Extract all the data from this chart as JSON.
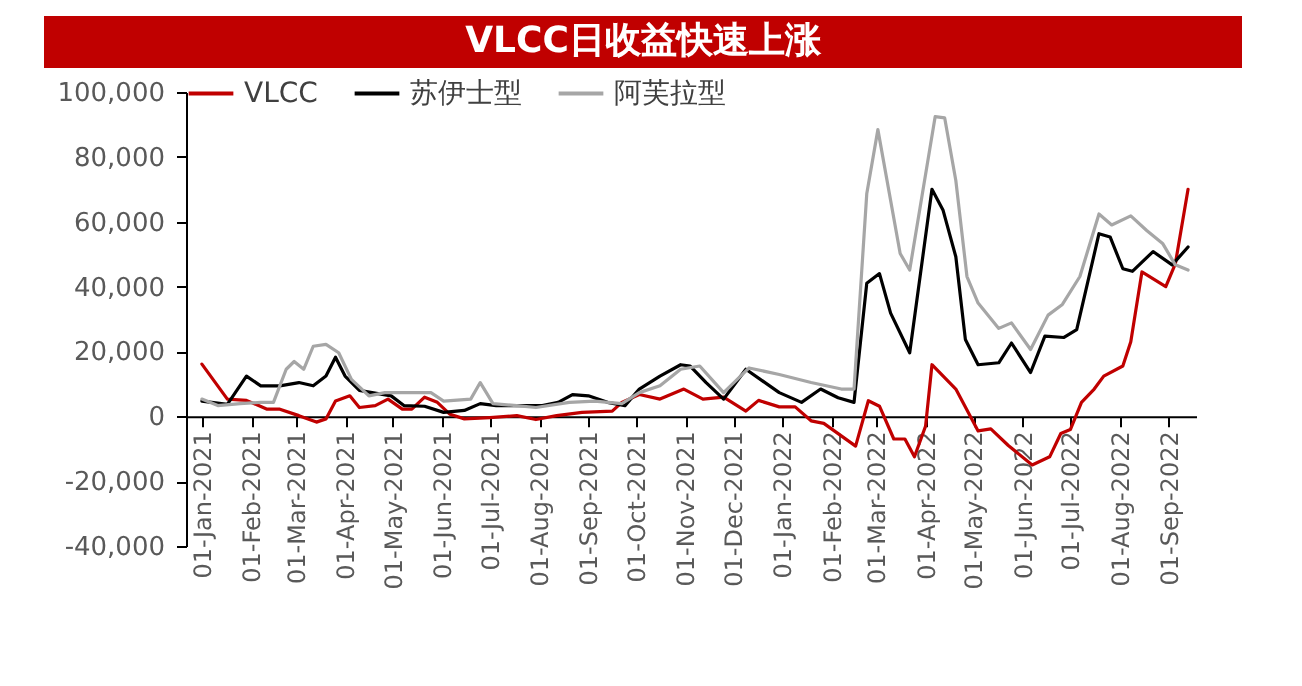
{
  "chart_data": {
    "type": "line",
    "title": "VLCC日收益快速上涨",
    "xlim": [
      "2020-12-22",
      "2022-09-18"
    ],
    "xticks": [
      {
        "value": "2021-01-01",
        "label": "01-Jan-2021"
      },
      {
        "value": "2021-02-01",
        "label": "01-Feb-2021"
      },
      {
        "value": "2021-03-01",
        "label": "01-Mar-2021"
      },
      {
        "value": "2021-04-01",
        "label": "01-Apr-2021"
      },
      {
        "value": "2021-05-01",
        "label": "01-May-2021"
      },
      {
        "value": "2021-06-01",
        "label": "01-Jun-2021"
      },
      {
        "value": "2021-07-01",
        "label": "01-Jul-2021"
      },
      {
        "value": "2021-08-01",
        "label": "01-Aug-2021"
      },
      {
        "value": "2021-09-01",
        "label": "01-Sep-2021"
      },
      {
        "value": "2021-10-01",
        "label": "01-Oct-2021"
      },
      {
        "value": "2021-11-01",
        "label": "01-Nov-2021"
      },
      {
        "value": "2021-12-01",
        "label": "01-Dec-2021"
      },
      {
        "value": "2022-01-01",
        "label": "01-Jan-2022"
      },
      {
        "value": "2022-02-01",
        "label": "01-Feb-2022"
      },
      {
        "value": "2022-03-01",
        "label": "01-Mar-2022"
      },
      {
        "value": "2022-04-01",
        "label": "01-Apr-2022"
      },
      {
        "value": "2022-05-01",
        "label": "01-May-2022"
      },
      {
        "value": "2022-06-01",
        "label": "01-Jun-2022"
      },
      {
        "value": "2022-07-01",
        "label": "01-Jul-2022"
      },
      {
        "value": "2022-08-01",
        "label": "01-Aug-2022"
      },
      {
        "value": "2022-09-01",
        "label": "01-Sep-2022"
      }
    ],
    "ylim": [
      -40000,
      100000
    ],
    "yticks": [
      {
        "value": -40000,
        "label": "-40,000"
      },
      {
        "value": -20000,
        "label": "-20,000"
      },
      0,
      {
        "value": 20000,
        "label": "20,000"
      },
      {
        "value": 40000,
        "label": "40,000"
      },
      {
        "value": 60000,
        "label": "60,000"
      },
      {
        "value": 80000,
        "label": "80,000"
      },
      {
        "value": 100000,
        "label": "100,000"
      }
    ],
    "legend": "top",
    "grid": false,
    "marker": "none",
    "line_style": "solid",
    "series": [
      {
        "name": "VLCC",
        "color": "#c00000",
        "x": [
          "2021-01-01",
          "2021-01-17",
          "2021-01-29",
          "2021-02-11",
          "2021-02-19",
          "2021-03-03",
          "2021-03-14",
          "2021-03-20",
          "2021-03-26",
          "2021-04-04",
          "2021-04-10",
          "2021-04-20",
          "2021-04-28",
          "2021-05-07",
          "2021-05-13",
          "2021-05-21",
          "2021-05-29",
          "2021-06-06",
          "2021-06-15",
          "2021-07-01",
          "2021-07-18",
          "2021-07-30",
          "2021-08-12",
          "2021-08-28",
          "2021-09-16",
          "2021-09-22",
          "2021-10-03",
          "2021-10-16",
          "2021-10-31",
          "2021-11-12",
          "2021-11-25",
          "2021-12-09",
          "2021-12-17",
          "2021-12-30",
          "2022-01-09",
          "2022-01-19",
          "2022-01-27",
          "2022-02-16",
          "2022-02-24",
          "2022-03-03",
          "2022-03-12",
          "2022-03-19",
          "2022-03-25",
          "2022-04-01",
          "2022-04-05",
          "2022-04-20",
          "2022-05-04",
          "2022-05-12",
          "2022-05-23",
          "2022-06-07",
          "2022-06-18",
          "2022-06-25",
          "2022-07-01",
          "2022-07-08",
          "2022-07-16",
          "2022-07-22",
          "2022-08-03",
          "2022-08-08",
          "2022-08-15",
          "2022-08-30",
          "2022-09-05",
          "2022-09-13"
        ],
        "values": [
          16100,
          5300,
          4900,
          2200,
          2200,
          200,
          -1800,
          -800,
          4700,
          6300,
          2700,
          3300,
          5300,
          2200,
          2200,
          5900,
          4300,
          600,
          -800,
          -400,
          200,
          -1000,
          200,
          1200,
          1600,
          4300,
          6700,
          5300,
          8400,
          5300,
          5900,
          1600,
          4900,
          2900,
          2900,
          -1400,
          -2200,
          -9200,
          4800,
          3100,
          -7000,
          -7000,
          -12500,
          -3000,
          15900,
          8400,
          -4500,
          -3900,
          -9000,
          -15000,
          -12500,
          -5300,
          -4100,
          4300,
          8400,
          12400,
          15500,
          23000,
          44500,
          40000,
          47000,
          70000
        ]
      },
      {
        "name": "苏伊士型",
        "color": "#000000",
        "x": [
          "2021-01-01",
          "2021-01-17",
          "2021-01-29",
          "2021-02-07",
          "2021-02-19",
          "2021-03-03",
          "2021-03-12",
          "2021-03-20",
          "2021-03-26",
          "2021-04-01",
          "2021-04-10",
          "2021-04-18",
          "2021-04-30",
          "2021-05-08",
          "2021-05-21",
          "2021-06-02",
          "2021-06-15",
          "2021-06-25",
          "2021-07-05",
          "2021-07-22",
          "2021-08-03",
          "2021-08-13",
          "2021-08-22",
          "2021-09-01",
          "2021-09-13",
          "2021-09-24",
          "2021-10-03",
          "2021-10-16",
          "2021-10-29",
          "2021-11-04",
          "2021-11-14",
          "2021-11-25",
          "2021-12-09",
          "2021-12-30",
          "2022-01-13",
          "2022-01-25",
          "2022-02-05",
          "2022-02-15",
          "2022-02-23",
          "2022-03-03",
          "2022-03-10",
          "2022-03-22",
          "2022-04-05",
          "2022-04-12",
          "2022-04-20",
          "2022-04-26",
          "2022-05-04",
          "2022-05-17",
          "2022-05-25",
          "2022-06-06",
          "2022-06-15",
          "2022-06-27",
          "2022-07-05",
          "2022-07-19",
          "2022-07-26",
          "2022-08-03",
          "2022-08-09",
          "2022-08-22",
          "2022-09-03",
          "2022-09-13"
        ],
        "values": [
          4700,
          3700,
          12400,
          9400,
          9400,
          10400,
          9400,
          12400,
          18200,
          12400,
          8000,
          7300,
          6300,
          3300,
          3100,
          1200,
          1800,
          3900,
          3300,
          3300,
          3300,
          4300,
          6700,
          6300,
          4300,
          3300,
          8400,
          12400,
          15900,
          15500,
          10400,
          5300,
          14500,
          7300,
          4300,
          8400,
          5700,
          4300,
          41000,
          44000,
          31800,
          19600,
          70000,
          63500,
          49200,
          23700,
          15900,
          16500,
          22600,
          13500,
          24700,
          24300,
          26700,
          56300,
          55300,
          45500,
          44700,
          50800,
          46700,
          52200
        ]
      },
      {
        "name": "阿芙拉型",
        "color": "#a6a6a6",
        "x": [
          "2021-01-01",
          "2021-01-11",
          "2021-01-25",
          "2021-02-07",
          "2021-02-15",
          "2021-02-23",
          "2021-02-28",
          "2021-03-06",
          "2021-03-12",
          "2021-03-20",
          "2021-03-28",
          "2021-04-05",
          "2021-04-16",
          "2021-04-26",
          "2021-05-25",
          "2021-06-02",
          "2021-06-19",
          "2021-06-25",
          "2021-07-03",
          "2021-07-18",
          "2021-07-30",
          "2021-08-20",
          "2021-09-05",
          "2021-09-22",
          "2021-10-03",
          "2021-10-16",
          "2021-10-29",
          "2021-11-10",
          "2021-11-25",
          "2021-12-11",
          "2021-12-30",
          "2022-01-19",
          "2022-02-07",
          "2022-02-15",
          "2022-02-23",
          "2022-03-02",
          "2022-03-16",
          "2022-03-22",
          "2022-04-07",
          "2022-04-13",
          "2022-04-20",
          "2022-04-27",
          "2022-05-04",
          "2022-05-17",
          "2022-05-25",
          "2022-06-06",
          "2022-06-17",
          "2022-06-26",
          "2022-07-07",
          "2022-07-19",
          "2022-07-27",
          "2022-08-08",
          "2022-08-18",
          "2022-08-28",
          "2022-09-05",
          "2022-09-13"
        ],
        "values": [
          5300,
          3300,
          3900,
          4300,
          4300,
          14500,
          16900,
          14500,
          21600,
          22200,
          19600,
          11400,
          6300,
          7300,
          7300,
          4700,
          5300,
          10400,
          3900,
          3300,
          2700,
          4300,
          4700,
          3900,
          7300,
          9400,
          14500,
          15500,
          7300,
          14900,
          12900,
          10400,
          8400,
          8400,
          68600,
          88400,
          50200,
          45100,
          92400,
          92000,
          72700,
          43100,
          34900,
          27100,
          28800,
          20600,
          31200,
          34500,
          43100,
          62400,
          59000,
          61800,
          57300,
          53300,
          46700,
          45100
        ]
      }
    ]
  }
}
